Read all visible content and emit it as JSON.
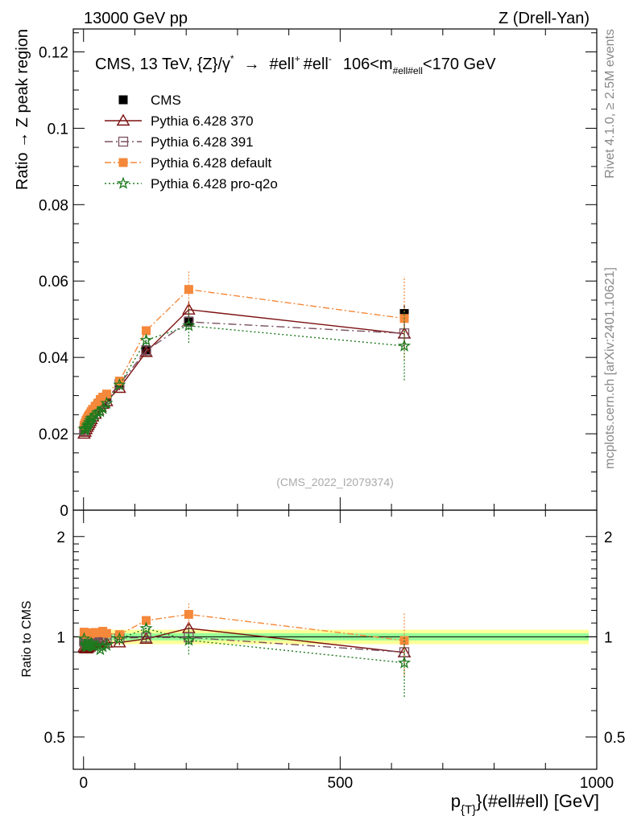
{
  "header": {
    "left": "13000 GeV pp",
    "right": "Z (Drell-Yan)"
  },
  "side_text": {
    "rivet": "Rivet 4.1.0, ≥ 2.5M events",
    "mcplots": "mcplots.cern.ch [arXiv:2401.10621]"
  },
  "chart_data": {
    "type": "scatter",
    "title": "CMS, 13 TeV, {Z}/γ* → #ell⁺ #ell⁻, 106<m_#ell#ell<170 GeV",
    "title_parts": {
      "main": "CMS, 13 TeV, {Z}/γ",
      "star": "*",
      "arrow": "→",
      "lep1": "#ell",
      "plus": "+",
      "lep2": "#ell",
      "minus": "-",
      "range_a": "106<m",
      "range_sub": "#ell#ell",
      "range_b": "<170 GeV"
    },
    "watermark": "(CMS_2022_I2079374)",
    "xlabel": "p_{T}(#ell#ell) [GeV]",
    "xlabel_parts": {
      "p": "p",
      "sub": "{T}",
      "rest": "}(#ell#ell) [GeV]"
    },
    "ylabel": "Ratio → Z peak region",
    "ratio_ylabel": "Ratio to CMS",
    "xlim": [
      -20,
      1000
    ],
    "ylim": [
      0,
      0.126
    ],
    "ratio_ylim": [
      0.4,
      2.4
    ],
    "x_ticks": [
      0,
      500,
      1000
    ],
    "x_tick_labels": [
      "0",
      "500",
      "1000"
    ],
    "y_ticks": [
      0,
      0.02,
      0.04,
      0.06,
      0.08,
      0.1,
      0.12
    ],
    "y_tick_labels": [
      "0",
      "0.02",
      "0.04",
      "0.06",
      "0.08",
      "0.1",
      "0.12"
    ],
    "ratio_ticks": [
      0.5,
      1,
      2
    ],
    "ratio_tick_labels": [
      "0.5",
      "1",
      "2"
    ],
    "ratio_band_inner": 0.025,
    "ratio_band_outer": 0.05,
    "x": [
      1,
      3,
      5,
      7,
      9,
      11,
      13,
      15,
      17.5,
      22.5,
      27.5,
      32.5,
      37.5,
      45,
      70,
      122,
      205,
      625
    ],
    "series": [
      {
        "name": "CMS",
        "color": "#000000",
        "marker": "square-filled",
        "dash": "none",
        "values": [
          0.0215,
          0.0222,
          0.023,
          0.0236,
          0.024,
          0.0244,
          0.0248,
          0.0251,
          0.0257,
          0.0264,
          0.0272,
          0.0282,
          0.0285,
          0.0297,
          0.0333,
          0.042,
          0.0495,
          0.0515
        ],
        "errors": [
          0.0004,
          0.0004,
          0.0004,
          0.0004,
          0.0004,
          0.0004,
          0.0004,
          0.0004,
          0.0004,
          0.0004,
          0.0004,
          0.0004,
          0.0005,
          0.0005,
          0.0006,
          0.0008,
          0.0012,
          0.0022
        ]
      },
      {
        "name": "Pythia 6.428 370",
        "color": "#7b1010",
        "marker": "triangle-open",
        "dash": "none",
        "values": [
          0.02,
          0.0205,
          0.0212,
          0.0218,
          0.0223,
          0.0228,
          0.0233,
          0.0238,
          0.0245,
          0.0252,
          0.0262,
          0.027,
          0.0278,
          0.0285,
          0.032,
          0.0414,
          0.0525,
          0.0462
        ],
        "errors": [
          0.0003,
          0.0003,
          0.0003,
          0.0003,
          0.0003,
          0.0003,
          0.0003,
          0.0003,
          0.0003,
          0.0003,
          0.0003,
          0.0003,
          0.0004,
          0.0004,
          0.0006,
          0.001,
          0.002,
          0.004
        ]
      },
      {
        "name": "Pythia 6.428 391",
        "color": "#7a5060",
        "marker": "square-open",
        "dash": "10,4,2,4",
        "values": [
          0.0208,
          0.0215,
          0.0222,
          0.0228,
          0.0233,
          0.0238,
          0.0243,
          0.0248,
          0.0254,
          0.0262,
          0.0272,
          0.028,
          0.0284,
          0.0292,
          0.033,
          0.0418,
          0.0493,
          0.0463
        ],
        "errors": [
          0.0003,
          0.0003,
          0.0003,
          0.0003,
          0.0003,
          0.0003,
          0.0003,
          0.0003,
          0.0003,
          0.0003,
          0.0003,
          0.0003,
          0.0004,
          0.0004,
          0.0006,
          0.001,
          0.002,
          0.004
        ]
      },
      {
        "name": "Pythia 6.428 default",
        "color": "#f5883a",
        "marker": "square-filled",
        "dash": "8,3,2,3",
        "values": [
          0.0222,
          0.0228,
          0.0235,
          0.024,
          0.0245,
          0.0249,
          0.0253,
          0.0258,
          0.0264,
          0.0272,
          0.028,
          0.029,
          0.0296,
          0.0304,
          0.0338,
          0.047,
          0.0578,
          0.0502
        ],
        "errors": [
          0.0003,
          0.0003,
          0.0003,
          0.0003,
          0.0003,
          0.0003,
          0.0003,
          0.0003,
          0.0003,
          0.0003,
          0.0003,
          0.0003,
          0.0004,
          0.0004,
          0.0006,
          0.0012,
          0.005,
          0.011
        ]
      },
      {
        "name": "Pythia 6.428 pro-q2o",
        "color": "#1e7a1e",
        "marker": "star-open",
        "dash": "2,3",
        "values": [
          0.0212,
          0.021,
          0.0215,
          0.0221,
          0.0225,
          0.023,
          0.0235,
          0.024,
          0.0242,
          0.0248,
          0.0256,
          0.0258,
          0.0266,
          0.028,
          0.0328,
          0.0445,
          0.0483,
          0.043
        ],
        "errors": [
          0.0003,
          0.0003,
          0.0003,
          0.0003,
          0.0003,
          0.0003,
          0.0003,
          0.0003,
          0.0003,
          0.0003,
          0.0003,
          0.0003,
          0.0004,
          0.0004,
          0.0006,
          0.0012,
          0.0045,
          0.009
        ]
      }
    ]
  }
}
